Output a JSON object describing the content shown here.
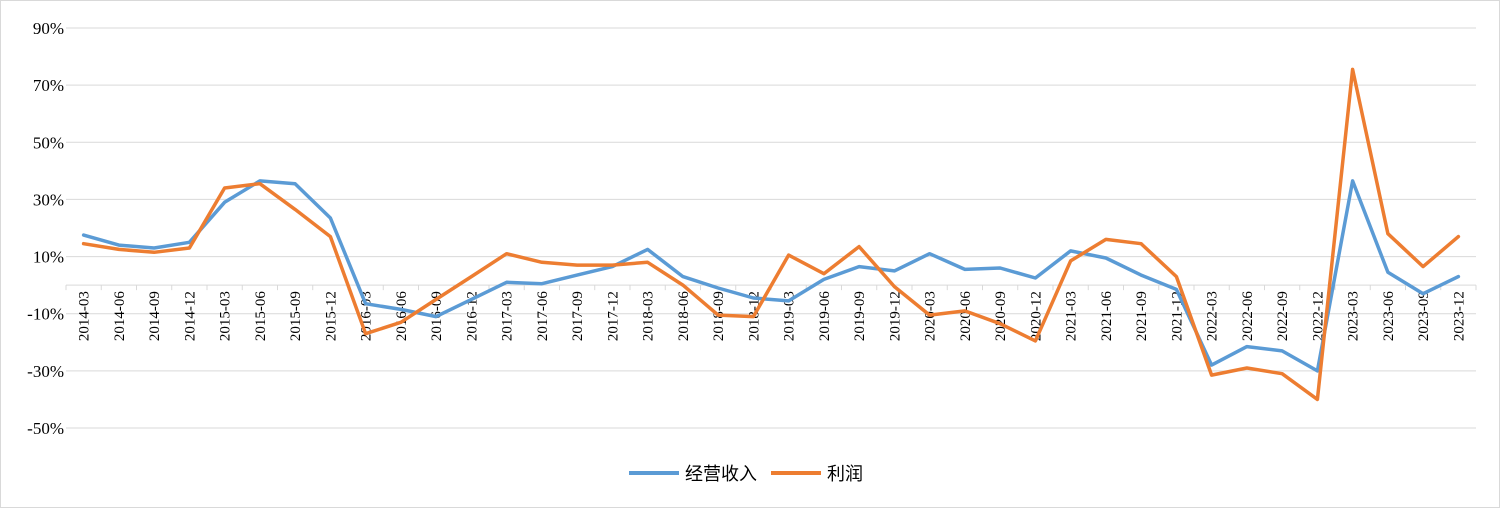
{
  "chart_data": {
    "type": "line",
    "title": "",
    "xlabel": "",
    "ylabel": "",
    "ylim": [
      -50,
      90
    ],
    "yticks": [
      90,
      70,
      50,
      30,
      10,
      -10,
      -30,
      -50
    ],
    "y_tick_labels": [
      "90%",
      "70%",
      "50%",
      "30%",
      "10%",
      "-10%",
      "-30%",
      "-50%"
    ],
    "grid": "horizontal",
    "legend_position": "bottom",
    "categories": [
      "2014-03",
      "2014-06",
      "2014-09",
      "2014-12",
      "2015-03",
      "2015-06",
      "2015-09",
      "2015-12",
      "2016-03",
      "2016-06",
      "2016-09",
      "2016-12",
      "2017-03",
      "2017-06",
      "2017-09",
      "2017-12",
      "2018-03",
      "2018-06",
      "2018-09",
      "2018-12",
      "2019-03",
      "2019-06",
      "2019-09",
      "2019-12",
      "2020-03",
      "2020-06",
      "2020-09",
      "2020-12",
      "2021-03",
      "2021-06",
      "2021-09",
      "2021-12",
      "2022-03",
      "2022-06",
      "2022-09",
      "2022-12",
      "2023-03",
      "2023-06",
      "2023-09",
      "2023-12"
    ],
    "series": [
      {
        "name": "经营收入",
        "color": "#5b9bd5",
        "values": [
          17.5,
          14,
          13,
          15,
          29,
          36.5,
          35.5,
          23.5,
          -6.5,
          -8.5,
          -11,
          -5,
          1,
          0.5,
          3.5,
          6.5,
          12.5,
          3,
          -1,
          -4.5,
          -5.5,
          2,
          6.5,
          5,
          11,
          5.5,
          6,
          2.5,
          12,
          9.5,
          3.5,
          -1.5,
          -28,
          -21.5,
          -23,
          -30,
          36.5,
          4.5,
          -3,
          3
        ]
      },
      {
        "name": "利润",
        "color": "#ed7d31",
        "values": [
          14.5,
          12.5,
          11.5,
          13,
          34,
          35.5,
          26.5,
          17,
          -17,
          -13,
          -5,
          3,
          11,
          8,
          7,
          7,
          8,
          0,
          -10.5,
          -11,
          10.5,
          4,
          13.5,
          -0.5,
          -10.5,
          -9,
          -13.5,
          -19.5,
          8.5,
          16,
          14.5,
          3,
          -31.5,
          -29,
          -31,
          -40,
          75.5,
          18,
          6.5,
          17
        ]
      }
    ]
  }
}
